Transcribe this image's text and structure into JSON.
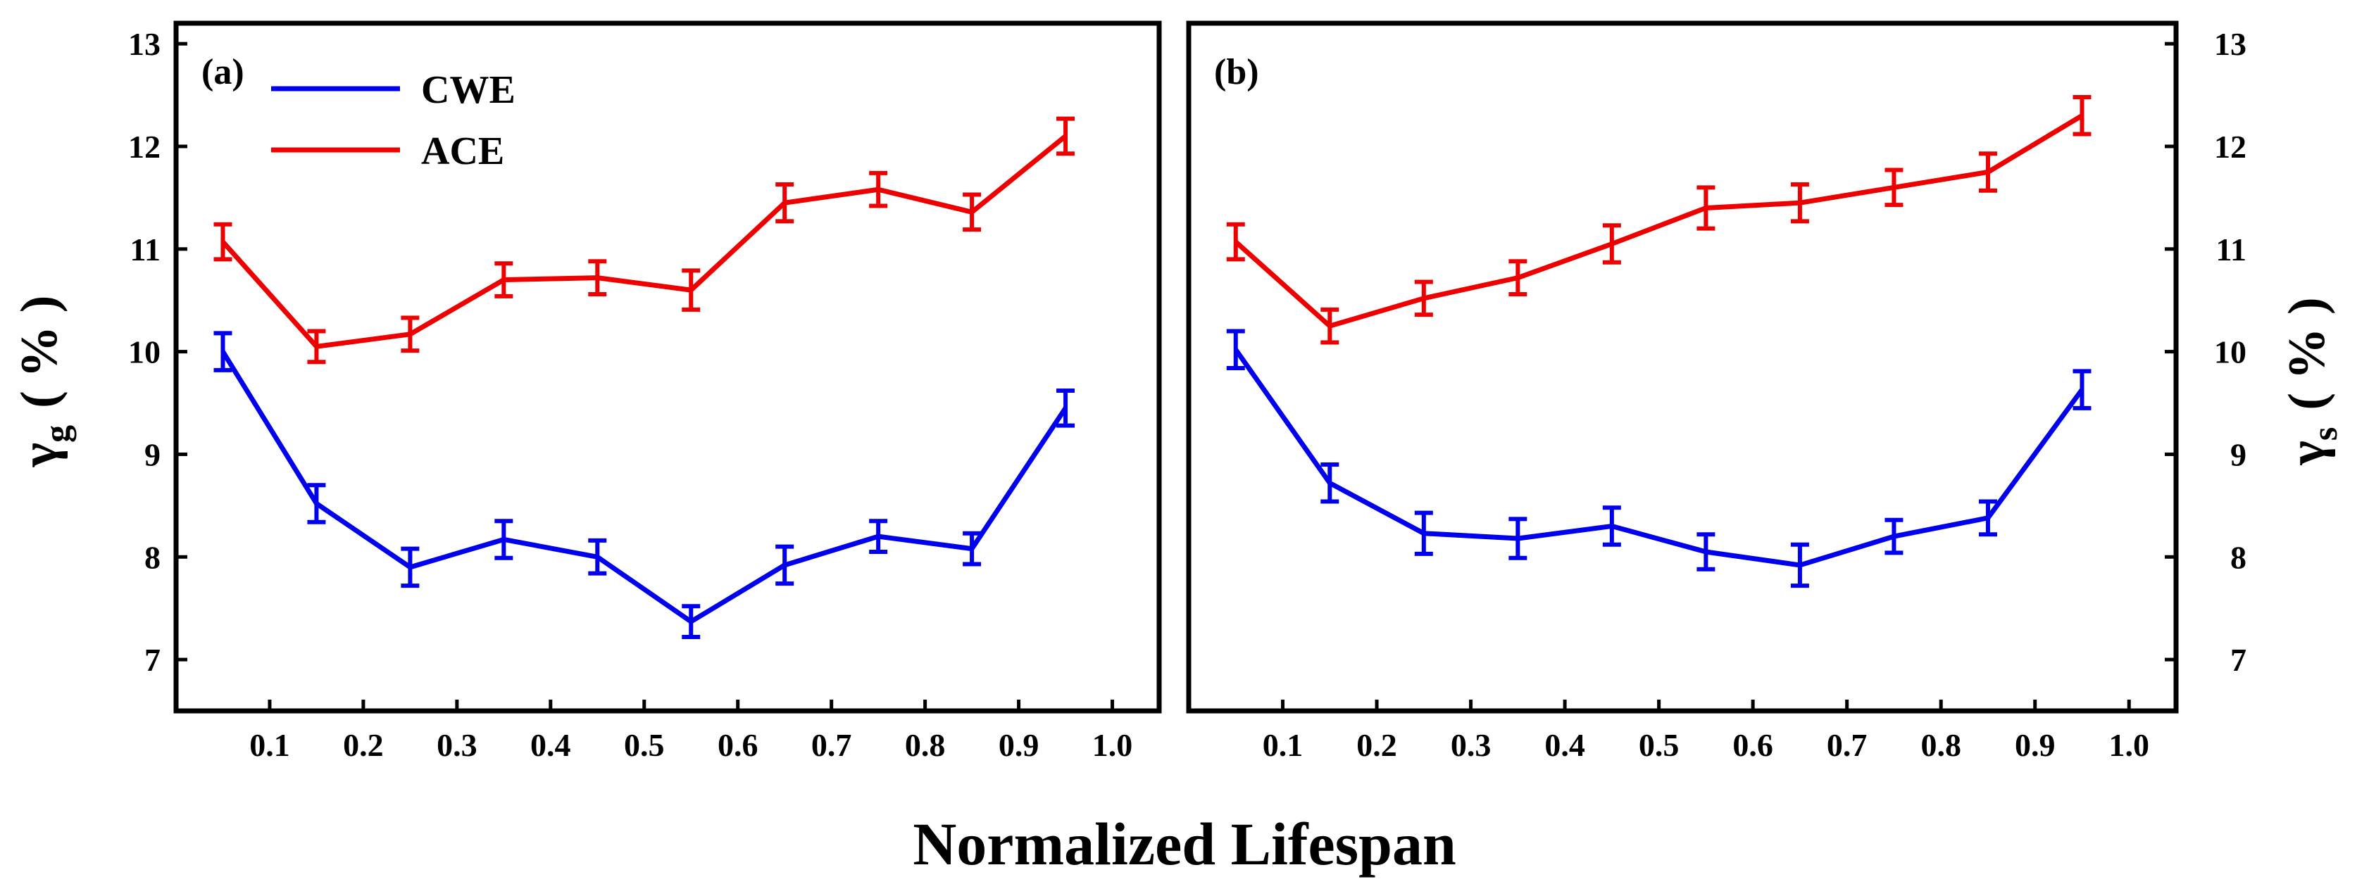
{
  "chart_data": [
    {
      "type": "line",
      "panel_label": "(a)",
      "y_axis_side": "left",
      "ylabel": "γ",
      "ylabel_subscript": "g",
      "ylabel_unit": "( % )",
      "xlabel": "Normalized Lifespan",
      "xlim": [
        0,
        1.05
      ],
      "ylim": [
        6.5,
        13.2
      ],
      "xticks": [
        0.1,
        0.2,
        0.3,
        0.4,
        0.5,
        0.6,
        0.7,
        0.8,
        0.9,
        1.0
      ],
      "xtick_labels": [
        "0.1",
        "0.2",
        "0.3",
        "0.4",
        "0.5",
        "0.6",
        "0.7",
        "0.8",
        "0.9",
        "1.0"
      ],
      "yticks": [
        7,
        8,
        9,
        10,
        11,
        12,
        13
      ],
      "ytick_labels": [
        "7",
        "8",
        "9",
        "10",
        "11",
        "12",
        "13"
      ],
      "legend_position": "top-left",
      "x": [
        0.05,
        0.15,
        0.25,
        0.35,
        0.45,
        0.55,
        0.65,
        0.75,
        0.85,
        0.95
      ],
      "series": [
        {
          "name": "CWE",
          "color": "#0000ee",
          "values": [
            10.0,
            8.52,
            7.9,
            8.17,
            8.0,
            7.37,
            7.92,
            8.2,
            8.08,
            9.45
          ],
          "errors": [
            0.18,
            0.18,
            0.18,
            0.18,
            0.16,
            0.15,
            0.18,
            0.15,
            0.15,
            0.17
          ]
        },
        {
          "name": "ACE",
          "color": "#ee0000",
          "values": [
            11.07,
            10.05,
            10.17,
            10.7,
            10.72,
            10.6,
            11.45,
            11.58,
            11.36,
            12.1
          ],
          "errors": [
            0.17,
            0.15,
            0.16,
            0.16,
            0.16,
            0.19,
            0.18,
            0.16,
            0.17,
            0.17
          ]
        }
      ]
    },
    {
      "type": "line",
      "panel_label": "(b)",
      "y_axis_side": "right",
      "ylabel": "γ",
      "ylabel_subscript": "s",
      "ylabel_unit": "( % )",
      "xlabel": "Normalized Lifespan",
      "xlim": [
        0,
        1.05
      ],
      "ylim": [
        6.5,
        13.2
      ],
      "xticks": [
        0.1,
        0.2,
        0.3,
        0.4,
        0.5,
        0.6,
        0.7,
        0.8,
        0.9,
        1.0
      ],
      "xtick_labels": [
        "0.1",
        "0.2",
        "0.3",
        "0.4",
        "0.5",
        "0.6",
        "0.7",
        "0.8",
        "0.9",
        "1.0"
      ],
      "yticks": [
        7,
        8,
        9,
        10,
        11,
        12,
        13
      ],
      "ytick_labels": [
        "7",
        "8",
        "9",
        "10",
        "11",
        "12",
        "13"
      ],
      "x": [
        0.05,
        0.15,
        0.25,
        0.35,
        0.45,
        0.55,
        0.65,
        0.75,
        0.85,
        0.95
      ],
      "series": [
        {
          "name": "CWE",
          "color": "#0000ee",
          "values": [
            10.02,
            8.72,
            8.23,
            8.18,
            8.3,
            8.05,
            7.92,
            8.2,
            8.38,
            9.63
          ],
          "errors": [
            0.18,
            0.18,
            0.2,
            0.19,
            0.18,
            0.17,
            0.2,
            0.16,
            0.16,
            0.18
          ]
        },
        {
          "name": "ACE",
          "color": "#ee0000",
          "values": [
            11.07,
            10.25,
            10.52,
            10.72,
            11.05,
            11.4,
            11.45,
            11.6,
            11.75,
            12.3
          ],
          "errors": [
            0.17,
            0.16,
            0.16,
            0.16,
            0.18,
            0.2,
            0.18,
            0.17,
            0.18,
            0.18
          ]
        }
      ]
    }
  ],
  "shared_xlabel": "Normalized Lifespan",
  "legend": {
    "entries": [
      {
        "name": "CWE",
        "color": "#0000ee"
      },
      {
        "name": "ACE",
        "color": "#ee0000"
      }
    ]
  }
}
